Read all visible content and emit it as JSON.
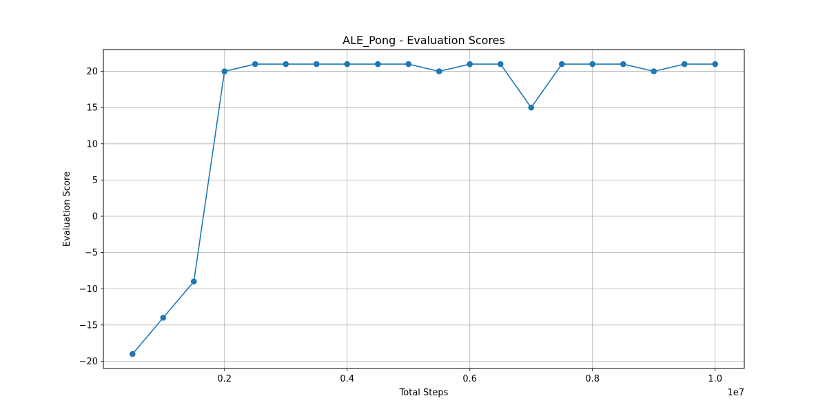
{
  "chart_data": {
    "type": "line",
    "title": "ALE_Pong - Evaluation Scores",
    "xlabel": "Total Steps",
    "ylabel": "Evaluation Score",
    "x_offset_label": "1e7",
    "x_tick_values": [
      0.2,
      0.4,
      0.6,
      0.8,
      1.0
    ],
    "x_tick_labels": [
      "0.2",
      "0.4",
      "0.6",
      "0.8",
      "1.0"
    ],
    "y_tick_values": [
      -20,
      -15,
      -10,
      -5,
      0,
      5,
      10,
      15,
      20
    ],
    "y_tick_labels": [
      "−20",
      "−15",
      "−10",
      "−5",
      "0",
      "5",
      "10",
      "15",
      "20"
    ],
    "xlim": [
      0.0025,
      1.0475
    ],
    "ylim": [
      -21,
      23
    ],
    "grid": true,
    "series": [
      {
        "x": [
          0.05,
          0.1,
          0.15,
          0.2,
          0.25,
          0.3,
          0.35,
          0.4,
          0.45,
          0.5,
          0.55,
          0.6,
          0.65,
          0.7,
          0.75,
          0.8,
          0.85,
          0.9,
          0.95,
          1.0
        ],
        "y": [
          -19,
          -14,
          -9,
          20,
          21,
          21,
          21,
          21,
          21,
          21,
          20,
          21,
          21,
          15,
          21,
          21,
          21,
          20,
          21,
          21
        ],
        "color": "#1f77b4",
        "marker": "circle"
      }
    ]
  }
}
